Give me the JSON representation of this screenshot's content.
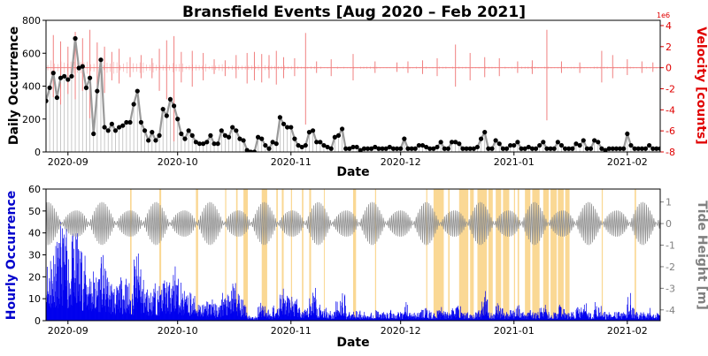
{
  "chart_data": [
    {
      "type": "line",
      "title": "Bransfield Events [Aug 2020 – Feb 2021]",
      "xlabel": "Date",
      "ylabel": "Daily Occurrence",
      "y2label": "Velocity [counts]",
      "y2_multiplier": "1e6",
      "y2_color": "#e00000",
      "x_range": [
        "2020-08-26",
        "2021-02-10"
      ],
      "ylim": [
        0,
        800
      ],
      "y2lim": [
        -8,
        4.5
      ],
      "x_ticks": [
        {
          "date": "2020-09-01",
          "label": "2020-09"
        },
        {
          "date": "2020-10-01",
          "label": "2020-10"
        },
        {
          "date": "2020-11-01",
          "label": "2020-11"
        },
        {
          "date": "2020-12-01",
          "label": "2020-12"
        },
        {
          "date": "2021-01-01",
          "label": "2021-01"
        },
        {
          "date": "2021-02-01",
          "label": "2021-02"
        }
      ],
      "y_ticks": [
        0,
        200,
        400,
        600,
        800
      ],
      "y2_ticks": [
        4,
        2,
        0,
        -2,
        -4,
        -6,
        -8
      ],
      "grid": false,
      "series": [
        {
          "kind": "daily-count",
          "color": "#000000",
          "start_date": "2020-08-26",
          "values": [
            310,
            390,
            480,
            330,
            450,
            460,
            440,
            460,
            690,
            510,
            520,
            390,
            450,
            110,
            370,
            560,
            150,
            130,
            170,
            130,
            150,
            160,
            180,
            180,
            290,
            370,
            180,
            130,
            70,
            120,
            70,
            100,
            260,
            220,
            320,
            280,
            200,
            110,
            80,
            130,
            100,
            60,
            50,
            50,
            60,
            100,
            50,
            50,
            130,
            100,
            90,
            150,
            130,
            80,
            70,
            10,
            0,
            0,
            90,
            80,
            40,
            20,
            60,
            50,
            210,
            170,
            150,
            150,
            80,
            40,
            30,
            40,
            120,
            130,
            60,
            60,
            40,
            30,
            20,
            90,
            100,
            140,
            20,
            20,
            30,
            30,
            10,
            20,
            20,
            20,
            30,
            20,
            20,
            20,
            30,
            20,
            20,
            20,
            80,
            20,
            20,
            20,
            40,
            40,
            30,
            20,
            20,
            30,
            60,
            20,
            20,
            60,
            60,
            50,
            20,
            20,
            20,
            20,
            30,
            80,
            120,
            20,
            20,
            70,
            50,
            20,
            20,
            40,
            40,
            60,
            20,
            20,
            30,
            20,
            20,
            40,
            60,
            20,
            20,
            20,
            60,
            40,
            20,
            20,
            20,
            50,
            40,
            70,
            20,
            20,
            70,
            60,
            20,
            10,
            20,
            20,
            20,
            20,
            20,
            110,
            40,
            20,
            20,
            20,
            20,
            40,
            20,
            20,
            20,
            60,
            40,
            20,
            10,
            10,
            20,
            20,
            20,
            20,
            10,
            20
          ]
        },
        {
          "kind": "velocity",
          "color": "#f08080",
          "spikes": [
            [
              "2020-08-28",
              3.1,
              -2.8
            ],
            [
              "2020-08-30",
              2.5,
              -3.5
            ],
            [
              "2020-09-01",
              2.0,
              -2.5
            ],
            [
              "2020-09-03",
              3.4,
              -3.0
            ],
            [
              "2020-09-05",
              2.8,
              -2.2
            ],
            [
              "2020-09-07",
              3.6,
              -4.8
            ],
            [
              "2020-09-09",
              2.4,
              -1.8
            ],
            [
              "2020-09-11",
              2.0,
              -2.4
            ],
            [
              "2020-09-13",
              1.5,
              -1.2
            ],
            [
              "2020-09-15",
              1.8,
              -1.5
            ],
            [
              "2020-09-18",
              1.0,
              -0.9
            ],
            [
              "2020-09-21",
              1.2,
              -1.0
            ],
            [
              "2020-09-24",
              0.9,
              -1.0
            ],
            [
              "2020-09-26",
              1.8,
              -2.2
            ],
            [
              "2020-09-28",
              2.6,
              -3.0
            ],
            [
              "2020-09-30",
              3.0,
              -7.0
            ],
            [
              "2020-10-02",
              1.5,
              -1.4
            ],
            [
              "2020-10-05",
              1.6,
              -1.8
            ],
            [
              "2020-10-08",
              1.4,
              -1.2
            ],
            [
              "2020-10-11",
              0.8,
              -0.6
            ],
            [
              "2020-10-14",
              0.7,
              -0.8
            ],
            [
              "2020-10-17",
              1.2,
              -1.0
            ],
            [
              "2020-10-20",
              1.4,
              -1.5
            ],
            [
              "2020-10-22",
              1.5,
              -1.2
            ],
            [
              "2020-10-24",
              1.3,
              -1.4
            ],
            [
              "2020-10-26",
              1.2,
              -1.0
            ],
            [
              "2020-10-28",
              1.6,
              -1.6
            ],
            [
              "2020-10-30",
              1.0,
              -1.0
            ],
            [
              "2020-11-02",
              0.9,
              -0.8
            ],
            [
              "2020-11-05",
              3.3,
              -5.4
            ],
            [
              "2020-11-08",
              0.6,
              -0.5
            ],
            [
              "2020-11-12",
              0.8,
              -0.8
            ],
            [
              "2020-11-18",
              1.3,
              -1.2
            ],
            [
              "2020-11-24",
              0.6,
              -0.5
            ],
            [
              "2020-11-30",
              0.5,
              -0.4
            ],
            [
              "2020-12-03",
              0.6,
              -0.5
            ],
            [
              "2020-12-07",
              0.7,
              -0.6
            ],
            [
              "2020-12-11",
              0.9,
              -0.8
            ],
            [
              "2020-12-16",
              2.2,
              -1.8
            ],
            [
              "2020-12-20",
              1.4,
              -1.2
            ],
            [
              "2020-12-24",
              1.0,
              -0.9
            ],
            [
              "2020-12-28",
              0.9,
              -0.8
            ],
            [
              "2021-01-02",
              0.6,
              -0.5
            ],
            [
              "2021-01-06",
              0.7,
              -0.6
            ],
            [
              "2021-01-10",
              3.6,
              -5.0
            ],
            [
              "2021-01-14",
              0.6,
              -0.5
            ],
            [
              "2021-01-19",
              0.5,
              -0.5
            ],
            [
              "2021-01-25",
              1.6,
              -1.4
            ],
            [
              "2021-01-28",
              1.2,
              -1.0
            ],
            [
              "2021-02-01",
              0.8,
              -0.7
            ],
            [
              "2021-02-05",
              0.6,
              -0.5
            ],
            [
              "2021-02-08",
              0.5,
              -0.4
            ]
          ]
        }
      ]
    },
    {
      "type": "bar",
      "xlabel": "Date",
      "ylabel": "Hourly Occurrence",
      "ylabel_color": "#0000cc",
      "y2label": "Tide Height [m]",
      "y2_color": "#808080",
      "x_range": [
        "2020-08-26",
        "2021-02-10"
      ],
      "ylim": [
        0,
        60
      ],
      "y2lim": [
        -4.5,
        1.6
      ],
      "x_ticks": [
        {
          "date": "2020-09-01",
          "label": "2020-09"
        },
        {
          "date": "2020-10-01",
          "label": "2020-10"
        },
        {
          "date": "2020-11-01",
          "label": "2020-11"
        },
        {
          "date": "2020-12-01",
          "label": "2020-12"
        },
        {
          "date": "2021-01-01",
          "label": "2021-01"
        },
        {
          "date": "2021-02-01",
          "label": "2021-02"
        }
      ],
      "y_ticks": [
        0,
        10,
        20,
        30,
        40,
        50,
        60
      ],
      "y2_ticks": [
        1,
        0,
        -1,
        -2,
        -3,
        -4
      ],
      "grid": false,
      "series": [
        {
          "kind": "hourly-count",
          "color": "#0000ee",
          "daily_envelope_start": "2020-08-26",
          "daily_envelope": [
            30,
            35,
            40,
            38,
            45,
            42,
            36,
            40,
            42,
            38,
            30,
            28,
            25,
            22,
            26,
            30,
            24,
            20,
            18,
            16,
            20,
            22,
            18,
            16,
            30,
            32,
            20,
            16,
            14,
            18,
            15,
            16,
            20,
            18,
            22,
            28,
            20,
            15,
            12,
            14,
            12,
            10,
            9,
            8,
            10,
            12,
            8,
            8,
            14,
            12,
            14,
            20,
            14,
            10,
            10,
            3,
            2,
            2,
            10,
            10,
            6,
            4,
            8,
            7,
            18,
            14,
            12,
            12,
            10,
            6,
            5,
            6,
            12,
            16,
            8,
            8,
            6,
            5,
            4,
            10,
            12,
            14,
            4,
            4,
            5,
            5,
            3,
            4,
            4,
            4,
            5,
            4,
            4,
            4,
            5,
            4,
            4,
            4,
            10,
            4,
            4,
            4,
            6,
            6,
            5,
            4,
            4,
            5,
            8,
            4,
            4,
            8,
            8,
            7,
            4,
            4,
            4,
            4,
            5,
            10,
            14,
            4,
            4,
            9,
            7,
            4,
            4,
            6,
            6,
            8,
            4,
            4,
            5,
            4,
            4,
            6,
            8,
            4,
            4,
            4,
            8,
            6,
            4,
            4,
            4,
            7,
            6,
            9,
            4,
            4,
            9,
            8,
            4,
            3,
            4,
            4,
            4,
            4,
            4,
            13,
            6,
            4,
            4,
            4,
            4,
            6,
            4,
            4,
            4,
            8,
            6,
            4,
            3,
            3,
            4,
            4,
            4,
            4,
            3,
            4
          ]
        },
        {
          "kind": "tide",
          "color": "#909090",
          "amplitude_m": [
            0.6,
            1.0
          ],
          "spring_neap_period_days": 14.8
        },
        {
          "kind": "highlight-intervals",
          "color": "#f5b83d",
          "intervals": [
            [
              "2020-09-18",
              "2020-09-18.4"
            ],
            [
              "2020-09-26",
              "2020-09-26.5"
            ],
            [
              "2020-10-06",
              "2020-10-06.6"
            ],
            [
              "2020-10-14",
              "2020-10-14.3"
            ],
            [
              "2020-10-17",
              "2020-10-17.4"
            ],
            [
              "2020-10-19",
              "2020-10-20.2"
            ],
            [
              "2020-10-24",
              "2020-10-25.5"
            ],
            [
              "2020-10-28",
              "2020-10-28.4"
            ],
            [
              "2020-10-29.5",
              "2020-10-30"
            ],
            [
              "2020-11-01",
              "2020-11-01.3"
            ],
            [
              "2020-11-04",
              "2020-11-04.4"
            ],
            [
              "2020-11-06",
              "2020-11-06.5"
            ],
            [
              "2020-11-10",
              "2020-11-10.2"
            ],
            [
              "2020-11-18",
              "2020-11-18.8"
            ],
            [
              "2020-11-24",
              "2020-11-24.3"
            ],
            [
              "2020-12-08",
              "2020-12-08.3"
            ],
            [
              "2020-12-10",
              "2020-12-12.8"
            ],
            [
              "2020-12-14",
              "2020-12-14.4"
            ],
            [
              "2020-12-17",
              "2020-12-19.5"
            ],
            [
              "2020-12-20",
              "2020-12-21"
            ],
            [
              "2020-12-22",
              "2020-12-24.6"
            ],
            [
              "2020-12-25",
              "2020-12-26.2"
            ],
            [
              "2020-12-27",
              "2020-12-28.5"
            ],
            [
              "2020-12-29",
              "2020-12-30.7"
            ],
            [
              "2021-01-01",
              "2021-01-01.3"
            ],
            [
              "2021-01-02",
              "2021-01-02.4"
            ],
            [
              "2021-01-04",
              "2021-01-05.5"
            ],
            [
              "2021-01-06",
              "2021-01-08"
            ],
            [
              "2021-01-09",
              "2021-01-10.5"
            ],
            [
              "2021-01-11",
              "2021-01-12.7"
            ],
            [
              "2021-01-13",
              "2021-01-14.6"
            ],
            [
              "2021-01-15",
              "2021-01-16.2"
            ],
            [
              "2021-01-25",
              "2021-01-25.3"
            ],
            [
              "2021-02-03",
              "2021-02-03.4"
            ]
          ]
        }
      ]
    }
  ]
}
